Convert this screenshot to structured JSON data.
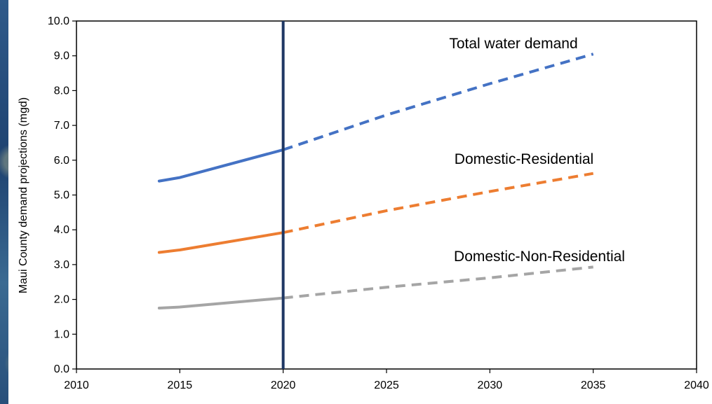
{
  "chart_data": {
    "type": "line",
    "title": "",
    "xlabel": "",
    "ylabel": "Maui County demand projections (mgd)",
    "xlim": [
      2010,
      2040
    ],
    "ylim": [
      0.0,
      10.0
    ],
    "x_ticks": [
      "2010",
      "2015",
      "2020",
      "2025",
      "2030",
      "2035",
      "2040"
    ],
    "y_ticks": [
      "0.0",
      "1.0",
      "2.0",
      "3.0",
      "4.0",
      "5.0",
      "6.0",
      "7.0",
      "8.0",
      "9.0",
      "10.0"
    ],
    "grid": false,
    "reference_line": {
      "x": 2020,
      "color": "#1f3864"
    },
    "series": [
      {
        "name": "Total water demand",
        "color": "#4472c4",
        "historical": {
          "x": [
            2014,
            2015,
            2020
          ],
          "y": [
            5.4,
            5.5,
            6.3
          ]
        },
        "projected": {
          "x": [
            2020,
            2025,
            2030,
            2035
          ],
          "y": [
            6.3,
            7.3,
            8.2,
            9.05
          ]
        }
      },
      {
        "name": "Domestic-Residential",
        "color": "#ed7d31",
        "historical": {
          "x": [
            2014,
            2015,
            2020
          ],
          "y": [
            3.35,
            3.42,
            3.92
          ]
        },
        "projected": {
          "x": [
            2020,
            2025,
            2030,
            2035
          ],
          "y": [
            3.92,
            4.55,
            5.1,
            5.62
          ]
        }
      },
      {
        "name": "Domestic-Non-Residential",
        "color": "#a5a5a5",
        "historical": {
          "x": [
            2014,
            2015,
            2020
          ],
          "y": [
            1.75,
            1.78,
            2.04
          ]
        },
        "projected": {
          "x": [
            2020,
            2025,
            2030,
            2035
          ],
          "y": [
            2.04,
            2.35,
            2.62,
            2.93
          ]
        }
      }
    ]
  }
}
